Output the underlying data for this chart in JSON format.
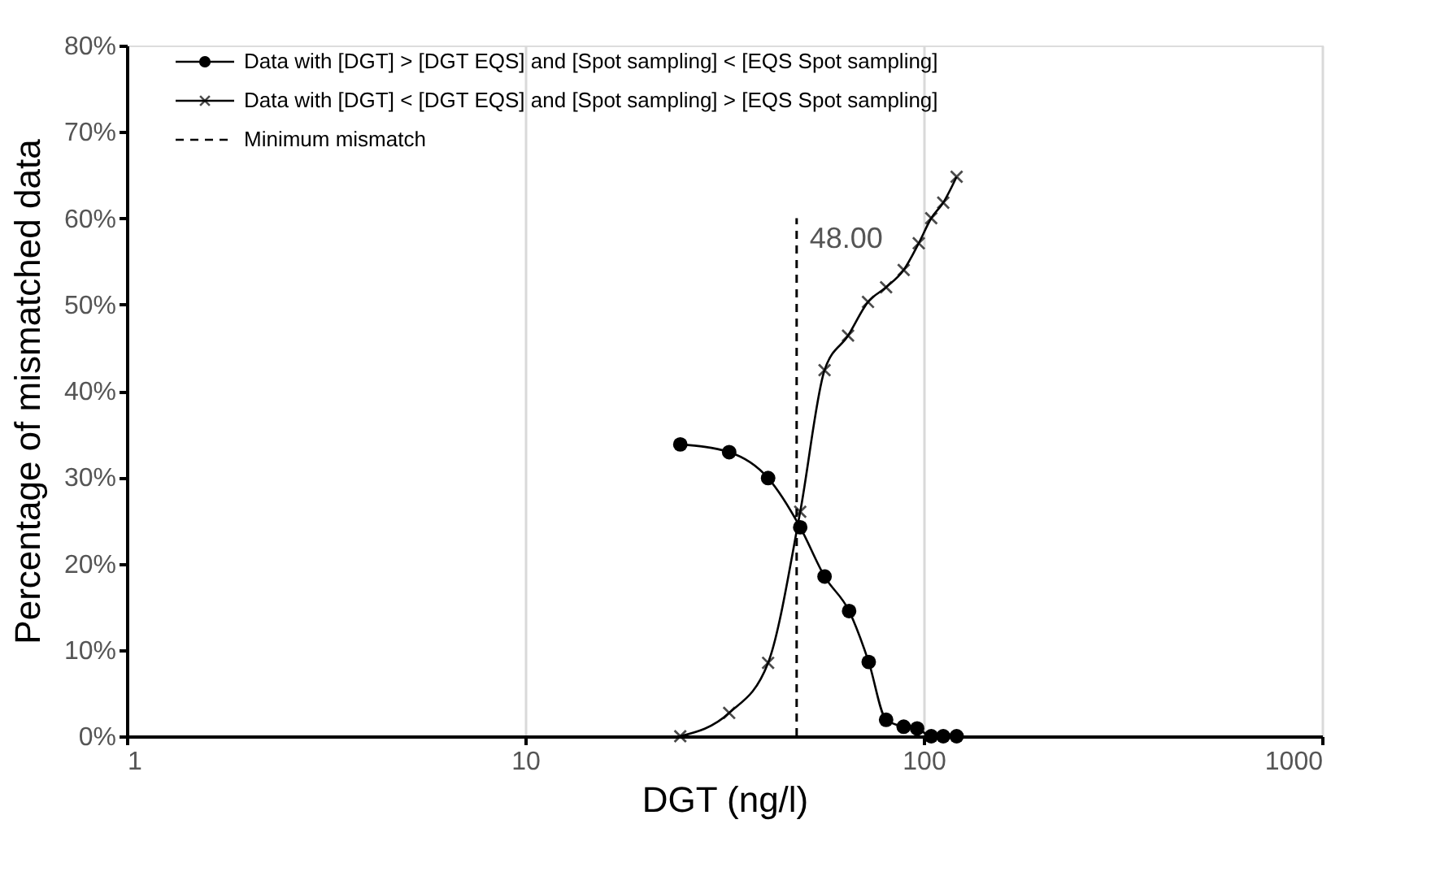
{
  "chart_data": {
    "type": "line",
    "xlabel": "DGT (ng/l)",
    "ylabel": "Percentage of mismatched data",
    "log": "x",
    "xlim": [
      1,
      1000
    ],
    "xticks": [
      1,
      10,
      100,
      1000
    ],
    "ylim": [
      0,
      80
    ],
    "yticks": [
      {
        "value": 0,
        "label": "0%"
      },
      {
        "value": 10,
        "label": "10%"
      },
      {
        "value": 20,
        "label": "20%"
      },
      {
        "value": 30,
        "label": "30%"
      },
      {
        "value": 40,
        "label": "40%"
      },
      {
        "value": 50,
        "label": "50%"
      },
      {
        "value": 60,
        "label": "60%"
      },
      {
        "value": 70,
        "label": "70%"
      },
      {
        "value": 80,
        "label": "80%"
      }
    ],
    "grid": "x",
    "legend": "top left",
    "series": [
      {
        "name": "Data with [DGT] > [DGT EQS] and [Spot sampling] < [EQS Spot sampling]",
        "color": "#000000",
        "marker": "circle",
        "x": [
          24.5,
          32.5,
          40.7,
          49,
          56.4,
          65,
          72.8,
          80.5,
          89.1,
          96.3,
          104.5,
          112,
          121
        ],
        "values": [
          33.8,
          32.9,
          29.9,
          24.2,
          18.5,
          14.5,
          8.6,
          1.9,
          1.1,
          0.9,
          0,
          0,
          0
        ]
      },
      {
        "name": "Data with [DGT] < [DGT EQS] and [Spot sampling] > [EQS Spot sampling]",
        "color": "#000000",
        "marker": "cross",
        "x": [
          24.5,
          32.5,
          40.7,
          49,
          56.4,
          64.6,
          72.5,
          80.5,
          89.1,
          97.2,
          104.5,
          112,
          121
        ],
        "values": [
          0,
          2.7,
          8.5,
          26,
          42.4,
          46.4,
          50.3,
          52,
          54,
          57.1,
          60,
          61.8,
          64.8
        ]
      }
    ],
    "ref_lines": [
      {
        "axis": "x",
        "value": 48,
        "label": "Minimum mismatch",
        "line_style": "dashed",
        "color": "#000000"
      }
    ],
    "annotations": [
      {
        "text": "48.00",
        "x": 48,
        "y": 60
      }
    ]
  }
}
